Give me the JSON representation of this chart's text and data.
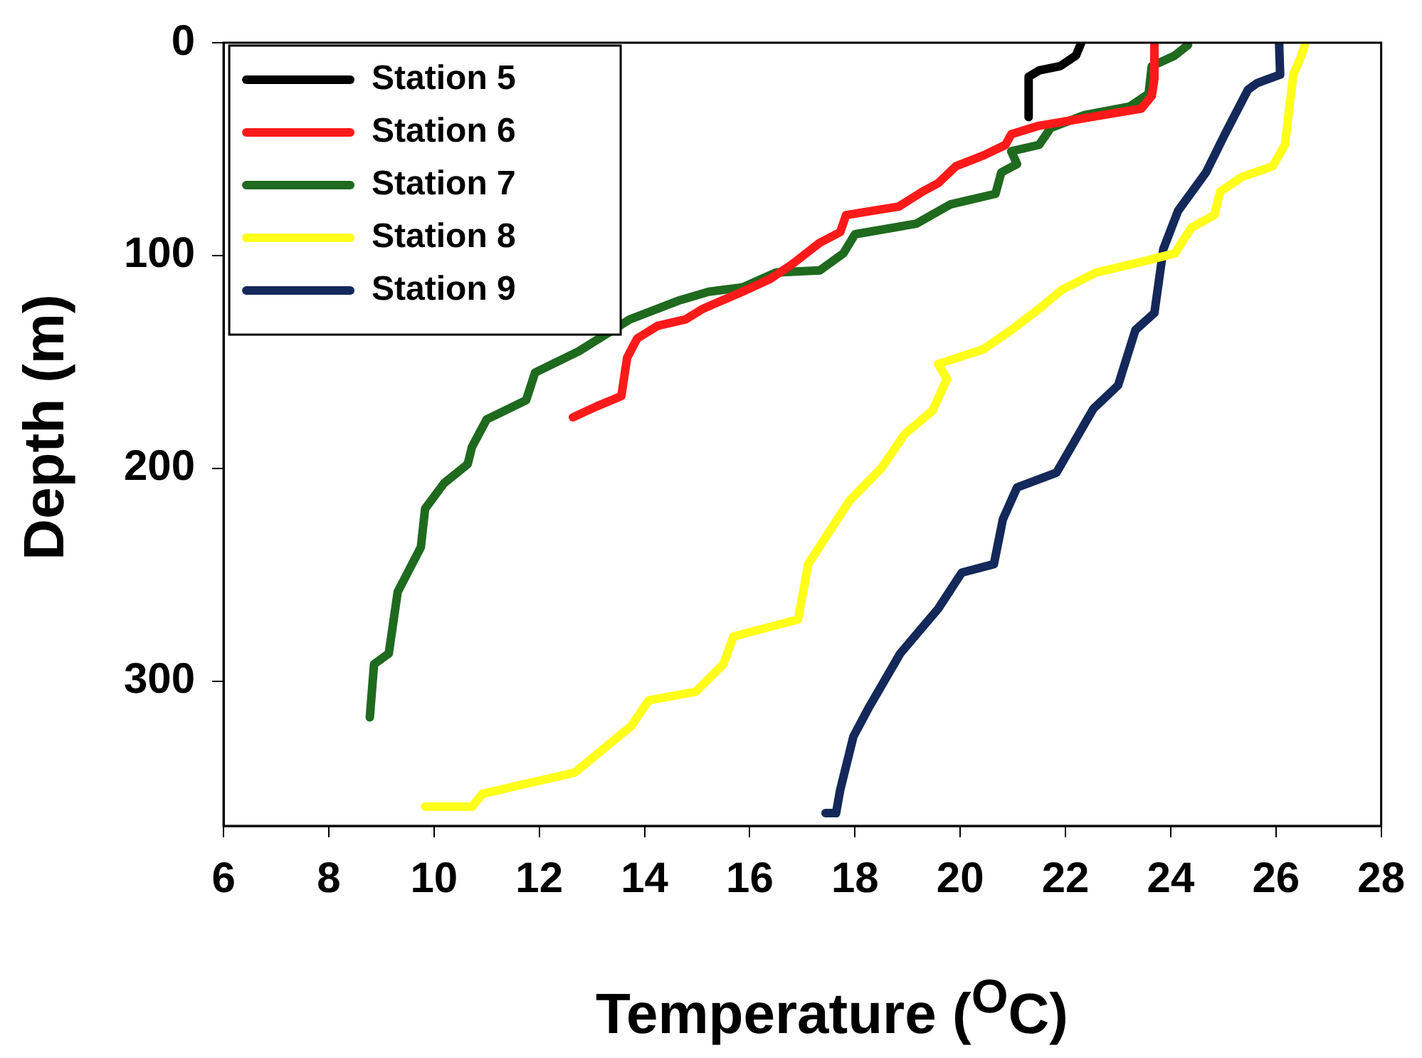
{
  "chart_data": {
    "type": "line",
    "xlabel": "Temperature ($^{O}$C)",
    "ylabel": "Depth (m)",
    "xlim": [
      6,
      28
    ],
    "xticks": [
      6,
      8,
      10,
      12,
      14,
      16,
      18,
      20,
      22,
      24,
      26,
      28
    ],
    "ylim": [
      368,
      0
    ],
    "yticks": [
      0,
      100,
      200,
      300
    ],
    "grid": false,
    "legend": "top left",
    "marker": "none",
    "line_style": "solid",
    "series": [
      {
        "name": "Station 5",
        "color": "#000000",
        "x": [
          22.3,
          22.2,
          21.9,
          21.5,
          21.3,
          21.3
        ],
        "values": [
          0,
          6,
          11,
          13,
          16,
          35
        ]
      },
      {
        "name": "Station 6",
        "color": "#ff1a1a",
        "x": [
          23.69,
          23.69,
          23.64,
          23.44,
          22.47,
          21.5,
          20.97,
          20.86,
          20.44,
          19.92,
          19.58,
          19.28,
          18.83,
          17.83,
          17.72,
          17.33,
          16.81,
          16.39,
          15.86,
          15.11,
          14.78,
          14.25,
          13.86,
          13.67,
          13.56,
          13.08,
          12.64
        ],
        "values": [
          0,
          17,
          25,
          31,
          35,
          39,
          43,
          48,
          53,
          58,
          66,
          70,
          77,
          81,
          89,
          94,
          104,
          111,
          117,
          125,
          130,
          133,
          139,
          148,
          166,
          171,
          176
        ]
      },
      {
        "name": "Station 7",
        "color": "#1f6a1f",
        "x": [
          24.33,
          24.08,
          23.64,
          23.58,
          23.22,
          22.36,
          21.72,
          21.5,
          20.97,
          21.08,
          20.78,
          20.67,
          19.81,
          19.17,
          18.0,
          17.78,
          17.33,
          16.5,
          15.86,
          15.22,
          14.67,
          13.72,
          12.75,
          11.92,
          11.75,
          11.0,
          10.72,
          10.64,
          10.19,
          9.83,
          9.75,
          9.31,
          9.14,
          8.86,
          8.78
        ],
        "values": [
          1,
          6,
          11,
          24,
          30,
          34,
          40,
          48,
          51,
          57,
          61,
          71,
          76,
          85,
          90,
          99,
          107,
          108,
          115,
          117,
          121,
          130,
          145,
          155,
          168,
          177,
          190,
          198,
          207,
          219,
          237,
          258,
          287,
          292,
          317
        ]
      },
      {
        "name": "Station 8",
        "color": "#ffff1a",
        "x": [
          26.56,
          26.47,
          26.33,
          26.17,
          25.94,
          25.36,
          24.94,
          24.83,
          24.39,
          24.08,
          23.44,
          22.58,
          21.94,
          21.5,
          20.97,
          20.44,
          19.58,
          19.75,
          19.47,
          18.94,
          18.5,
          17.9,
          17.11,
          16.92,
          15.69,
          15.5,
          14.97,
          14.08,
          13.75,
          12.67,
          11.61,
          10.92,
          10.72,
          9.83
        ],
        "values": [
          0,
          7,
          15,
          48,
          58,
          63,
          70,
          81,
          87,
          99,
          103,
          108,
          116,
          125,
          135,
          144,
          151,
          158,
          173,
          184,
          200,
          215,
          245,
          271,
          279,
          292,
          305,
          309,
          321,
          343,
          349,
          353,
          359,
          359
        ]
      },
      {
        "name": "Station 9",
        "color": "#14285a",
        "x": [
          26.06,
          26.08,
          25.64,
          25.47,
          25.03,
          24.67,
          24.14,
          23.86,
          23.69,
          23.33,
          23.0,
          22.53,
          21.83,
          21.08,
          20.81,
          20.64,
          20.03,
          19.58,
          18.86,
          18.25,
          17.97,
          17.72,
          17.64,
          17.44
        ],
        "values": [
          0,
          15,
          19,
          22,
          43,
          61,
          79,
          97,
          127,
          135,
          161,
          172,
          202,
          209,
          224,
          245,
          249,
          266,
          287,
          313,
          326,
          351,
          362,
          362
        ]
      }
    ]
  }
}
